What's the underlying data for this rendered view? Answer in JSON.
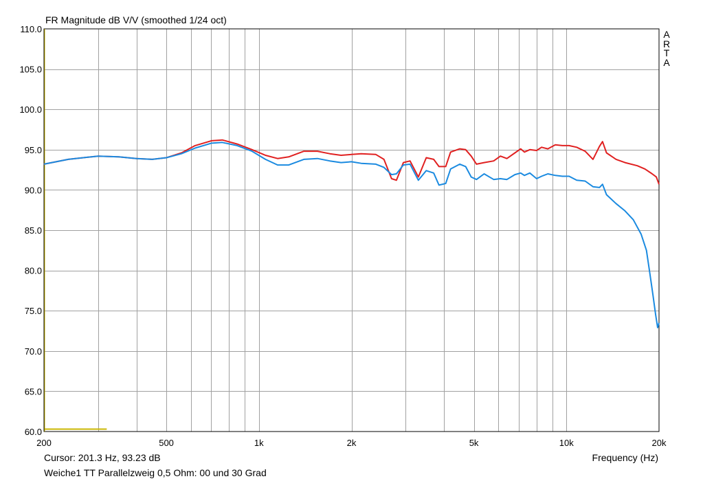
{
  "title": "FR Magnitude dB V/V (smoothed 1/24 oct)",
  "brand": "ARTA",
  "cursor_readout": "Cursor: 201.3 Hz, 93.23 dB",
  "caption": "Weiche1 TT Parallelzweig 0,5 Ohm: 00 und 30 Grad",
  "chart_data": {
    "type": "line",
    "title": "FR Magnitude dB V/V (smoothed 1/24 oct)",
    "xlabel": "Frequency (Hz)",
    "ylabel": "",
    "xscale": "log",
    "xlim": [
      200,
      20000
    ],
    "ylim": [
      60,
      110
    ],
    "grid": true,
    "x_ticks": [
      {
        "value": 200,
        "label": "200"
      },
      {
        "value": 500,
        "label": "500"
      },
      {
        "value": 1000,
        "label": "1k"
      },
      {
        "value": 2000,
        "label": "2k"
      },
      {
        "value": 5000,
        "label": "5k"
      },
      {
        "value": 10000,
        "label": "10k"
      },
      {
        "value": 20000,
        "label": "20k"
      }
    ],
    "y_ticks": [
      {
        "value": 110,
        "label": "110.0"
      },
      {
        "value": 105,
        "label": "105.0"
      },
      {
        "value": 100,
        "label": "100.0"
      },
      {
        "value": 95,
        "label": "95.0"
      },
      {
        "value": 90,
        "label": "90.0"
      },
      {
        "value": 85,
        "label": "85.0"
      },
      {
        "value": 80,
        "label": "80.0"
      },
      {
        "value": 75,
        "label": "75.0"
      },
      {
        "value": 70,
        "label": "70.0"
      },
      {
        "value": 65,
        "label": "65.0"
      },
      {
        "value": 60,
        "label": "60.0"
      }
    ],
    "colors": {
      "series1": "#e02020",
      "series2": "#1a8ae0",
      "marker": "#c8b400",
      "grid": "#a0a0a0"
    },
    "series": [
      {
        "color": "#e02020",
        "points": [
          [
            200,
            93.2
          ],
          [
            240,
            93.8
          ],
          [
            300,
            94.2
          ],
          [
            350,
            94.1
          ],
          [
            400,
            93.9
          ],
          [
            450,
            93.8
          ],
          [
            500,
            94.0
          ],
          [
            560,
            94.6
          ],
          [
            620,
            95.5
          ],
          [
            700,
            96.1
          ],
          [
            760,
            96.2
          ],
          [
            850,
            95.7
          ],
          [
            950,
            95.0
          ],
          [
            1050,
            94.3
          ],
          [
            1150,
            93.9
          ],
          [
            1250,
            94.1
          ],
          [
            1400,
            94.8
          ],
          [
            1550,
            94.8
          ],
          [
            1700,
            94.5
          ],
          [
            1850,
            94.3
          ],
          [
            2000,
            94.4
          ],
          [
            2150,
            94.5
          ],
          [
            2400,
            94.4
          ],
          [
            2550,
            93.8
          ],
          [
            2700,
            91.4
          ],
          [
            2800,
            91.2
          ],
          [
            2950,
            93.4
          ],
          [
            3100,
            93.6
          ],
          [
            3300,
            91.6
          ],
          [
            3500,
            94.0
          ],
          [
            3700,
            93.8
          ],
          [
            3850,
            92.9
          ],
          [
            4050,
            92.9
          ],
          [
            4200,
            94.7
          ],
          [
            4500,
            95.1
          ],
          [
            4700,
            95.0
          ],
          [
            4900,
            94.2
          ],
          [
            5100,
            93.2
          ],
          [
            5400,
            93.4
          ],
          [
            5800,
            93.6
          ],
          [
            6100,
            94.2
          ],
          [
            6400,
            93.9
          ],
          [
            6800,
            94.6
          ],
          [
            7100,
            95.1
          ],
          [
            7300,
            94.7
          ],
          [
            7600,
            95.0
          ],
          [
            8000,
            94.9
          ],
          [
            8300,
            95.3
          ],
          [
            8700,
            95.1
          ],
          [
            9200,
            95.6
          ],
          [
            9700,
            95.5
          ],
          [
            10200,
            95.5
          ],
          [
            10800,
            95.3
          ],
          [
            11500,
            94.8
          ],
          [
            12200,
            93.8
          ],
          [
            12800,
            95.4
          ],
          [
            13100,
            96.0
          ],
          [
            13500,
            94.6
          ],
          [
            14500,
            93.8
          ],
          [
            15500,
            93.4
          ],
          [
            17000,
            93.0
          ],
          [
            18000,
            92.6
          ],
          [
            19000,
            92.0
          ],
          [
            19600,
            91.6
          ],
          [
            20000,
            90.7
          ]
        ]
      },
      {
        "color": "#1a8ae0",
        "points": [
          [
            200,
            93.2
          ],
          [
            240,
            93.8
          ],
          [
            300,
            94.2
          ],
          [
            350,
            94.1
          ],
          [
            400,
            93.9
          ],
          [
            450,
            93.8
          ],
          [
            500,
            94.0
          ],
          [
            560,
            94.5
          ],
          [
            620,
            95.2
          ],
          [
            700,
            95.8
          ],
          [
            760,
            95.9
          ],
          [
            850,
            95.5
          ],
          [
            950,
            94.8
          ],
          [
            1050,
            93.8
          ],
          [
            1150,
            93.1
          ],
          [
            1250,
            93.1
          ],
          [
            1400,
            93.8
          ],
          [
            1550,
            93.9
          ],
          [
            1700,
            93.6
          ],
          [
            1850,
            93.4
          ],
          [
            2000,
            93.5
          ],
          [
            2150,
            93.3
          ],
          [
            2400,
            93.2
          ],
          [
            2550,
            92.8
          ],
          [
            2700,
            91.9
          ],
          [
            2800,
            92.0
          ],
          [
            2950,
            93.1
          ],
          [
            3100,
            93.2
          ],
          [
            3300,
            91.2
          ],
          [
            3500,
            92.4
          ],
          [
            3700,
            92.1
          ],
          [
            3850,
            90.6
          ],
          [
            4050,
            90.8
          ],
          [
            4200,
            92.6
          ],
          [
            4500,
            93.2
          ],
          [
            4700,
            92.9
          ],
          [
            4900,
            91.6
          ],
          [
            5100,
            91.3
          ],
          [
            5400,
            92.0
          ],
          [
            5800,
            91.3
          ],
          [
            6100,
            91.4
          ],
          [
            6400,
            91.3
          ],
          [
            6800,
            91.9
          ],
          [
            7100,
            92.1
          ],
          [
            7300,
            91.8
          ],
          [
            7600,
            92.1
          ],
          [
            8000,
            91.4
          ],
          [
            8300,
            91.7
          ],
          [
            8700,
            92.0
          ],
          [
            9200,
            91.8
          ],
          [
            9700,
            91.7
          ],
          [
            10200,
            91.7
          ],
          [
            10800,
            91.2
          ],
          [
            11500,
            91.1
          ],
          [
            12200,
            90.4
          ],
          [
            12800,
            90.3
          ],
          [
            13100,
            90.7
          ],
          [
            13500,
            89.4
          ],
          [
            14500,
            88.3
          ],
          [
            15500,
            87.4
          ],
          [
            16500,
            86.3
          ],
          [
            17500,
            84.5
          ],
          [
            18200,
            82.5
          ],
          [
            18700,
            79.5
          ],
          [
            19100,
            77.0
          ],
          [
            19500,
            74.5
          ],
          [
            19800,
            72.9
          ],
          [
            20000,
            73.5
          ]
        ]
      }
    ],
    "marker_segment": {
      "y": 60.3,
      "x_from": 200,
      "x_to": 320
    }
  },
  "x_axis_label": "Frequency (Hz)"
}
